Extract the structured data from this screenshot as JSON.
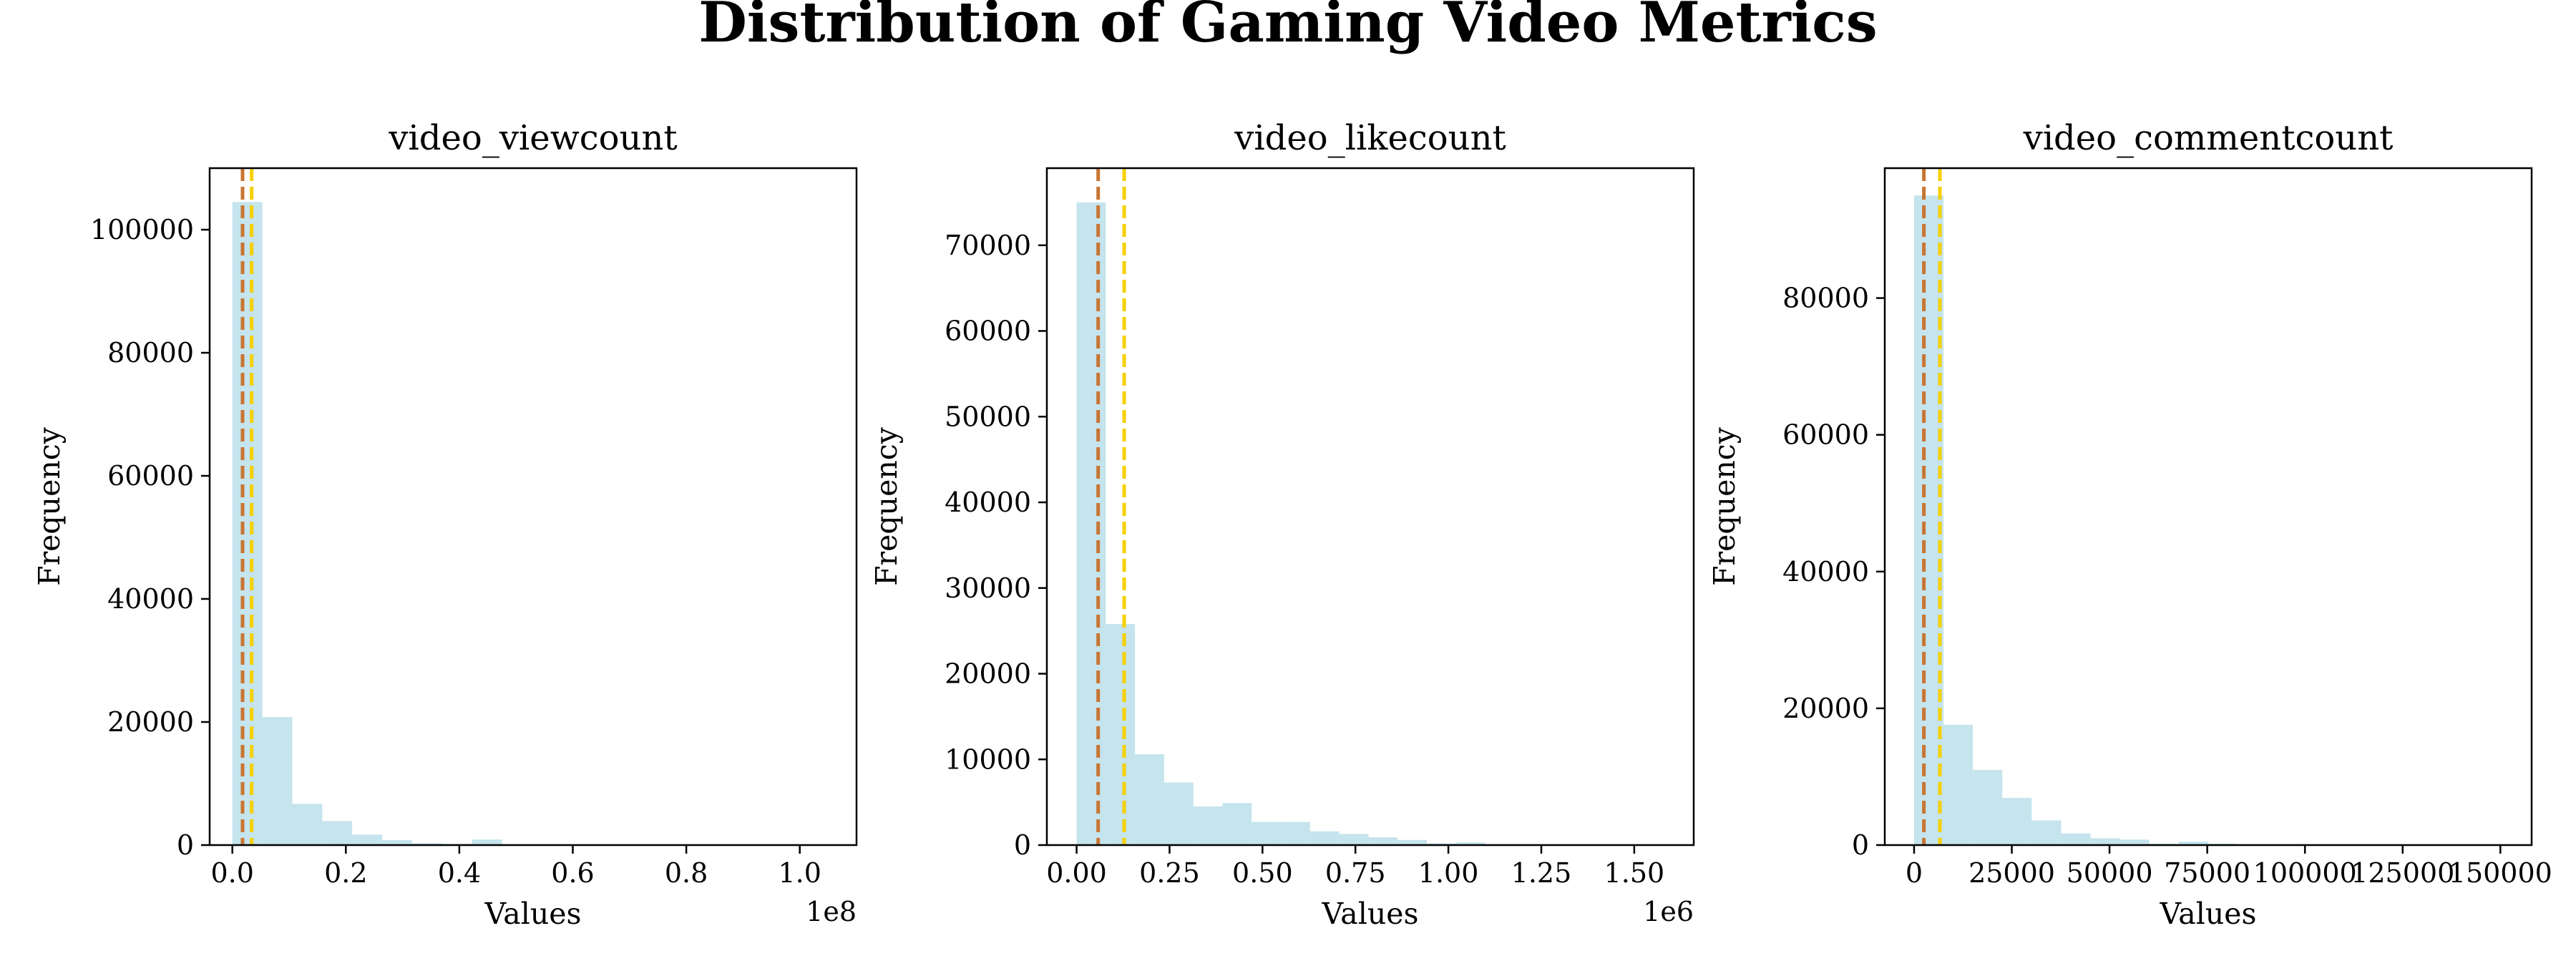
{
  "figure": {
    "title": "Distribution of Gaming Video Metrics",
    "colors": {
      "bars": "#add8e6",
      "median_line": "#c87533",
      "mean_line": "#f5d000",
      "axes": "#000000"
    }
  },
  "chart_data": [
    {
      "type": "bar",
      "title": "video_viewcount",
      "xlabel": "Values",
      "ylabel": "Frequency",
      "x_offset_label": "1e8",
      "xlim": [
        -0.04,
        1.1
      ],
      "ylim": [
        0,
        110000
      ],
      "xticks": [
        0.0,
        0.2,
        0.4,
        0.6,
        0.8,
        1.0
      ],
      "xtick_labels": [
        "0.0",
        "0.2",
        "0.4",
        "0.6",
        "0.8",
        "1.0"
      ],
      "yticks": [
        0,
        20000,
        40000,
        60000,
        80000,
        100000
      ],
      "ytick_labels": [
        "0",
        "20000",
        "40000",
        "60000",
        "80000",
        "100000"
      ],
      "bin_start": 0.0,
      "bin_width": 0.0528,
      "values": [
        104500,
        20800,
        6700,
        3900,
        1700,
        800,
        300,
        200,
        900,
        100,
        0,
        0,
        0,
        0,
        0,
        0,
        0,
        0,
        0,
        10
      ],
      "median_x": 0.018,
      "mean_x": 0.034,
      "grid": false,
      "legend": "none"
    },
    {
      "type": "bar",
      "title": "video_likecount",
      "xlabel": "Values",
      "ylabel": "Frequency",
      "x_offset_label": "1e6",
      "xlim": [
        -0.08,
        1.66
      ],
      "ylim": [
        0,
        79000
      ],
      "xticks": [
        0.0,
        0.25,
        0.5,
        0.75,
        1.0,
        1.25,
        1.5
      ],
      "xtick_labels": [
        "0.00",
        "0.25",
        "0.50",
        "0.75",
        "1.00",
        "1.25",
        "1.50"
      ],
      "yticks": [
        0,
        10000,
        20000,
        30000,
        40000,
        50000,
        60000,
        70000
      ],
      "ytick_labels": [
        "0",
        "10000",
        "20000",
        "30000",
        "40000",
        "50000",
        "60000",
        "70000"
      ],
      "bin_start": 0.0,
      "bin_width": 0.0785,
      "values": [
        75000,
        25800,
        10600,
        7300,
        4500,
        4900,
        2700,
        2700,
        1600,
        1300,
        900,
        600,
        200,
        300,
        100,
        100,
        0,
        0,
        0,
        10
      ],
      "median_x": 0.058,
      "mean_x": 0.128,
      "grid": false,
      "legend": "none"
    },
    {
      "type": "bar",
      "title": "video_commentcount",
      "xlabel": "Values",
      "ylabel": "Frequency",
      "x_offset_label": "",
      "xlim": [
        -7500,
        158000
      ],
      "ylim": [
        0,
        99000
      ],
      "xticks": [
        0,
        25000,
        50000,
        75000,
        100000,
        125000,
        150000
      ],
      "xtick_labels": [
        "0",
        "25000",
        "50000",
        "75000",
        "100000",
        "125000",
        "150000"
      ],
      "yticks": [
        0,
        20000,
        40000,
        60000,
        80000
      ],
      "ytick_labels": [
        "0",
        "20000",
        "40000",
        "60000",
        "80000"
      ],
      "bin_start": 0,
      "bin_width": 7520,
      "values": [
        95000,
        17600,
        11000,
        6900,
        3600,
        1700,
        1000,
        800,
        200,
        500,
        200,
        100,
        50,
        50,
        0,
        0,
        0,
        0,
        0,
        10
      ],
      "median_x": 2500,
      "mean_x": 6600,
      "grid": false,
      "legend": "none"
    }
  ]
}
